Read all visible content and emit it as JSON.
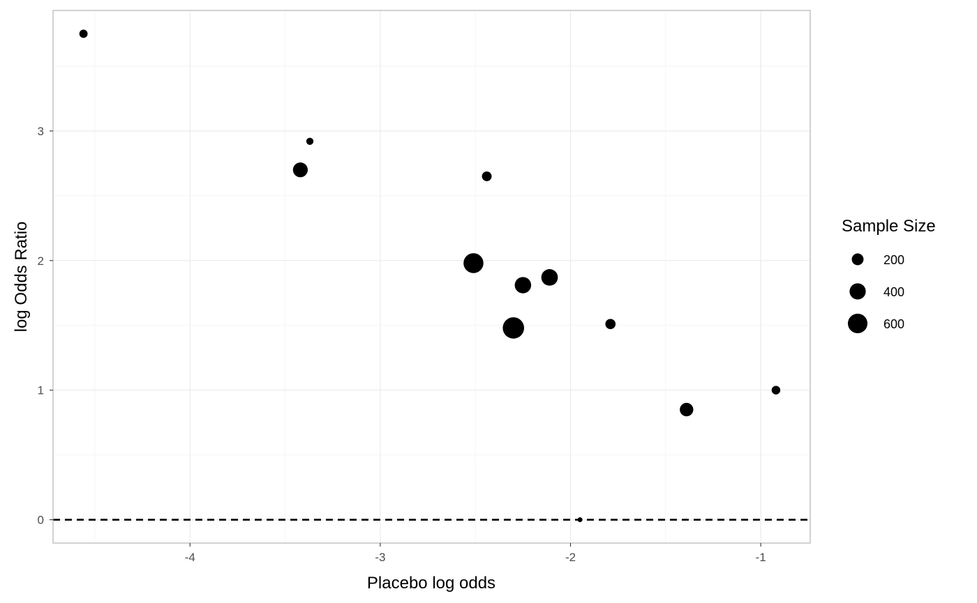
{
  "chart_data": {
    "type": "scatter",
    "title": "",
    "xlabel": "Placebo log odds",
    "ylabel": "log Odds Ratio",
    "xlim": [
      -4.72,
      -0.74
    ],
    "ylim": [
      -0.18,
      3.93
    ],
    "x_ticks": [
      -4,
      -3,
      -2,
      -1
    ],
    "x_tick_labels": [
      "-4",
      "-3",
      "-2",
      "-1"
    ],
    "y_ticks": [
      0,
      1,
      2,
      3
    ],
    "y_tick_labels": [
      "0",
      "1",
      "2",
      "3"
    ],
    "grid": true,
    "reference_line": {
      "y": 0,
      "style": "dashed"
    },
    "marker_color": "#000000",
    "size_legend": {
      "title": "Sample Size",
      "placement": "right",
      "entries": [
        {
          "value": 200,
          "label": "200"
        },
        {
          "value": 400,
          "label": "400"
        },
        {
          "value": 600,
          "label": "600"
        }
      ]
    },
    "points": [
      {
        "x": -4.56,
        "y": 3.75,
        "size": 90
      },
      {
        "x": -3.37,
        "y": 2.92,
        "size": 65
      },
      {
        "x": -3.42,
        "y": 2.7,
        "size": 330
      },
      {
        "x": -2.44,
        "y": 2.65,
        "size": 130
      },
      {
        "x": -2.51,
        "y": 1.98,
        "size": 620
      },
      {
        "x": -2.25,
        "y": 1.81,
        "size": 410
      },
      {
        "x": -2.11,
        "y": 1.87,
        "size": 420
      },
      {
        "x": -2.3,
        "y": 1.48,
        "size": 720
      },
      {
        "x": -1.79,
        "y": 1.51,
        "size": 145
      },
      {
        "x": -1.39,
        "y": 0.85,
        "size": 270
      },
      {
        "x": -0.92,
        "y": 1.0,
        "size": 100
      },
      {
        "x": -1.95,
        "y": 0.0,
        "size": 25
      }
    ]
  }
}
